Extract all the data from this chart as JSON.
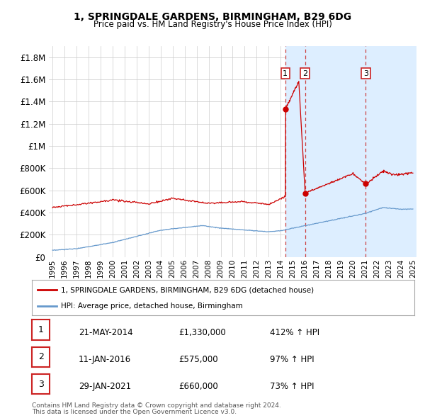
{
  "title": "1, SPRINGDALE GARDENS, BIRMINGHAM, B29 6DG",
  "subtitle": "Price paid vs. HM Land Registry's House Price Index (HPI)",
  "ylim": [
    0,
    1900000
  ],
  "yticks": [
    0,
    200000,
    400000,
    600000,
    800000,
    1000000,
    1200000,
    1400000,
    1600000,
    1800000
  ],
  "ytick_labels": [
    "£0",
    "£200K",
    "£400K",
    "£600K",
    "£800K",
    "£1M",
    "£1.2M",
    "£1.4M",
    "£1.6M",
    "£1.8M"
  ],
  "transactions": [
    {
      "date": "21-MAY-2014",
      "date_num": 2014.38,
      "price": 1330000,
      "label": "1",
      "pct": "412% ↑ HPI"
    },
    {
      "date": "11-JAN-2016",
      "date_num": 2016.03,
      "price": 575000,
      "label": "2",
      "pct": "97% ↑ HPI"
    },
    {
      "date": "29-JAN-2021",
      "date_num": 2021.08,
      "price": 660000,
      "label": "3",
      "pct": "73% ↑ HPI"
    }
  ],
  "legend_line1": "1, SPRINGDALE GARDENS, BIRMINGHAM, B29 6DG (detached house)",
  "legend_line2": "HPI: Average price, detached house, Birmingham",
  "footer1": "Contains HM Land Registry data © Crown copyright and database right 2024.",
  "footer2": "This data is licensed under the Open Government Licence v3.0.",
  "line_color_red": "#cc0000",
  "line_color_blue": "#6699cc",
  "bg_color": "#ffffff",
  "grid_color": "#cccccc",
  "highlight_fill": "#ddeeff",
  "vline_color": "#cc4444",
  "xlim_left": 1994.7,
  "xlim_right": 2025.3
}
